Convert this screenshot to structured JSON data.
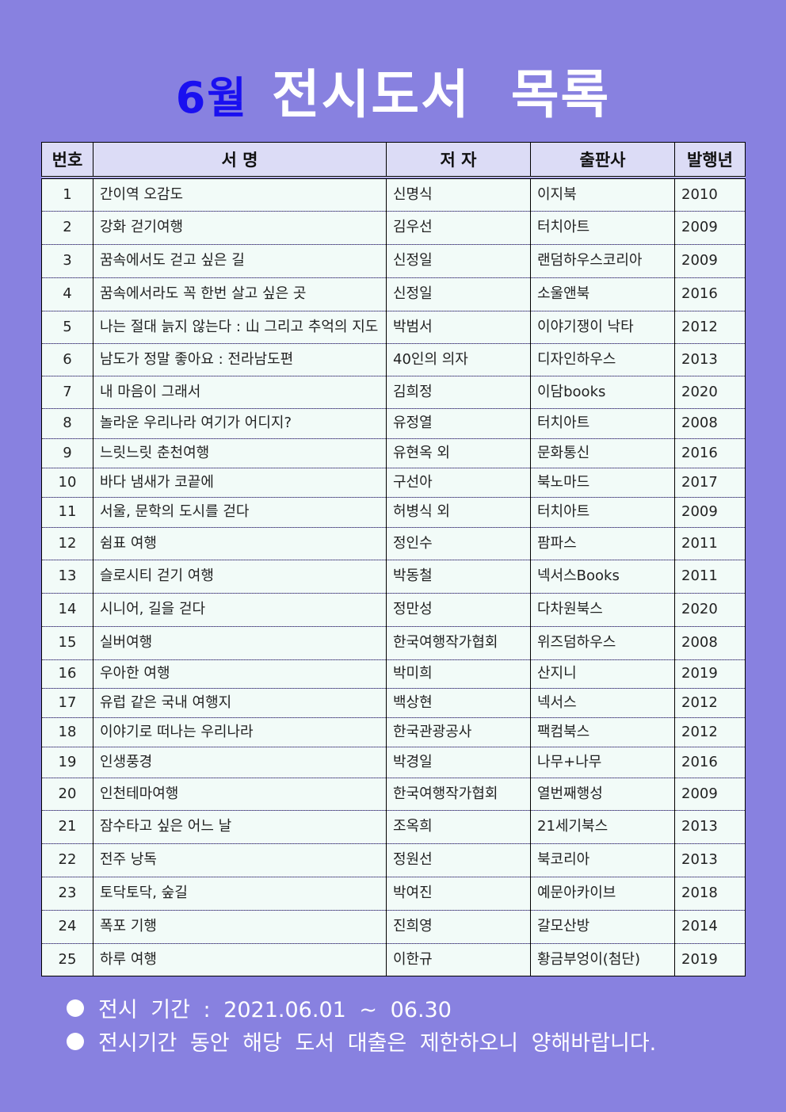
{
  "title": {
    "month": "6월",
    "rest": "전시도서 목록"
  },
  "columns": [
    "번호",
    "서 명",
    "저 자",
    "출판사",
    "발행년"
  ],
  "rows": [
    [
      "1",
      "간이역 오감도",
      "신명식",
      "이지북",
      "2010"
    ],
    [
      "2",
      "강화 걷기여행",
      "김우선",
      "터치아트",
      "2009"
    ],
    [
      "3",
      "꿈속에서도 걷고 싶은 길",
      "신정일",
      "랜덤하우스코리아",
      "2009"
    ],
    [
      "4",
      "꿈속에서라도 꼭 한번 살고 싶은 곳",
      "신정일",
      "소울앤북",
      "2016"
    ],
    [
      "5",
      "나는 절대 늙지 않는다 : 山 그리고 추억의 지도",
      "박범서",
      "이야기쟁이 낙타",
      "2012"
    ],
    [
      "6",
      "남도가 정말 좋아요 : 전라남도편",
      "40인의 의자",
      "디자인하우스",
      "2013"
    ],
    [
      "7",
      "내 마음이 그래서",
      "김희정",
      "이담books",
      "2020"
    ],
    [
      "8",
      "놀라운 우리나라 여기가 어디지?",
      "유정열",
      "터치아트",
      "2008"
    ],
    [
      "9",
      "느릿느릿 춘천여행",
      "유현옥 외",
      "문화통신",
      "2016"
    ],
    [
      "10",
      "바다 냄새가 코끝에",
      "구선아",
      "북노마드",
      "2017"
    ],
    [
      "11",
      "서울, 문학의 도시를 걷다",
      "허병식 외",
      "터치아트",
      "2009"
    ],
    [
      "12",
      "쉼표 여행",
      "정인수",
      "팜파스",
      "2011"
    ],
    [
      "13",
      "슬로시티 걷기 여행",
      "박동철",
      "넥서스Books",
      "2011"
    ],
    [
      "14",
      "시니어, 길을 걷다",
      "정만성",
      "다차원북스",
      "2020"
    ],
    [
      "15",
      "실버여행",
      "한국여행작가협회",
      "위즈덤하우스",
      "2008"
    ],
    [
      "16",
      "우아한 여행",
      "박미희",
      "산지니",
      "2019"
    ],
    [
      "17",
      "유럽 같은 국내 여행지",
      "백상현",
      "넥서스",
      "2012"
    ],
    [
      "18",
      "이야기로 떠나는 우리나라",
      "한국관광공사",
      "팩컴북스",
      "2012"
    ],
    [
      "19",
      "인생풍경",
      "박경일",
      "나무+나무",
      "2016"
    ],
    [
      "20",
      "인천테마여행",
      "한국여행작가협회",
      "열번째행성",
      "2009"
    ],
    [
      "21",
      "잠수타고 싶은 어느 날",
      "조옥희",
      "21세기북스",
      "2013"
    ],
    [
      "22",
      "전주 낭독",
      "정원선",
      "북코리아",
      "2013"
    ],
    [
      "23",
      "토닥토닥, 숲길",
      "박여진",
      "예문아카이브",
      "2018"
    ],
    [
      "24",
      "폭포 기행",
      "진희영",
      "갈모산방",
      "2014"
    ],
    [
      "25",
      "하루 여행",
      "이한규",
      "황금부엉이(첨단)",
      "2019"
    ]
  ],
  "footer": {
    "period": "전시 기간 : 2021.06.01 ~ 06.30",
    "notice": "전시기간 동안 해당 도서 대출은 제한하오니 양해바랍니다."
  }
}
